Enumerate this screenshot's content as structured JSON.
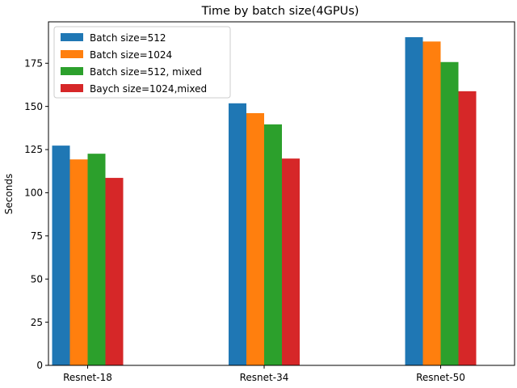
{
  "chart_data": {
    "type": "bar",
    "title": "Time by batch size(4GPUs)",
    "xlabel": "",
    "ylabel": "Seconds",
    "categories": [
      "Resnet-18",
      "Resnet-34",
      "Resnet-50"
    ],
    "ylim": [
      0,
      199
    ],
    "yticks": [
      0,
      25,
      50,
      75,
      100,
      125,
      150,
      175
    ],
    "grid": false,
    "legend_position": "top-left",
    "series": [
      {
        "name": "Batch size=512",
        "color": "#1f77b4",
        "values": [
          127.3,
          151.8,
          190.1
        ]
      },
      {
        "name": "Batch size=1024",
        "color": "#ff7f0e",
        "values": [
          119.3,
          146.1,
          187.6
        ]
      },
      {
        "name": "Batch size=512, mixed",
        "color": "#2ca02c",
        "values": [
          122.6,
          139.6,
          175.7
        ]
      },
      {
        "name": "Baych size=1024,mixed",
        "color": "#d62728",
        "values": [
          108.6,
          119.8,
          158.8
        ]
      }
    ]
  }
}
